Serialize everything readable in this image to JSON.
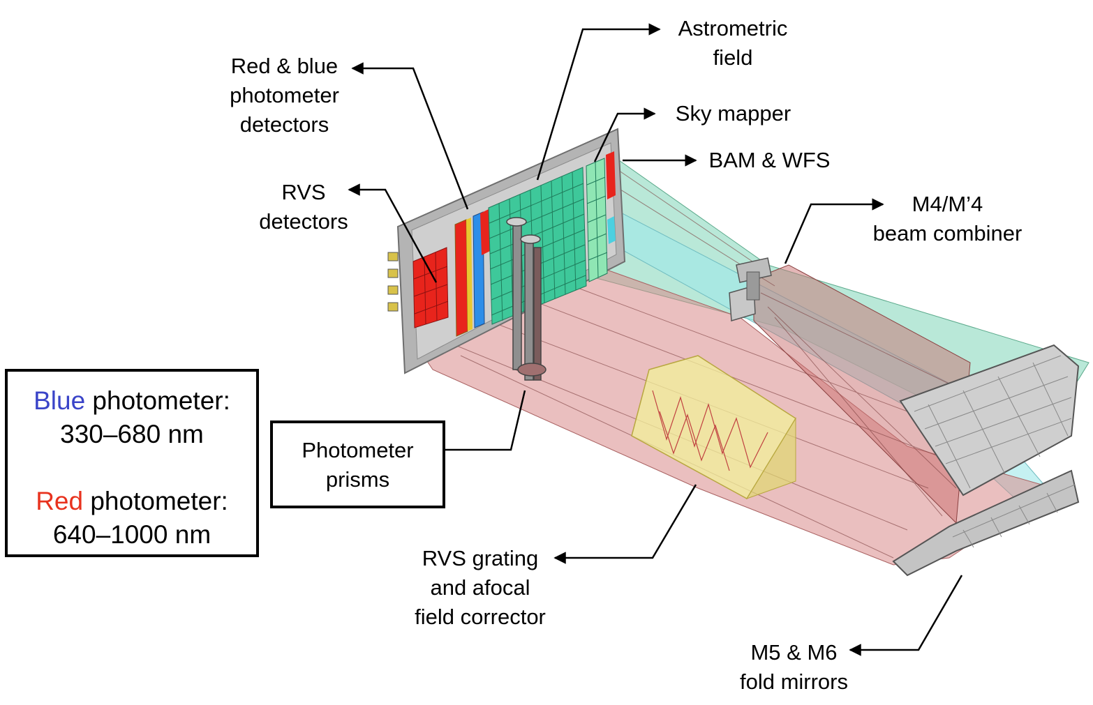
{
  "labels": {
    "astrometric_field": [
      "Astrometric",
      "field"
    ],
    "red_blue_detectors": [
      "Red & blue",
      "photometer",
      "detectors"
    ],
    "sky_mapper": "Sky mapper",
    "bam_wfs": "BAM & WFS",
    "rvs_detectors": [
      "RVS",
      "detectors"
    ],
    "beam_combiner": [
      "M4/M’4",
      "beam combiner"
    ],
    "photometer_prisms": [
      "Photometer",
      "prisms"
    ],
    "rvs_grating": [
      "RVS grating",
      "and afocal",
      "field corrector"
    ],
    "fold_mirrors": [
      "M5 & M6",
      "fold mirrors"
    ]
  },
  "legend": {
    "blue_word": "Blue",
    "blue_rest": " photometer:",
    "blue_range": "330–680 nm",
    "red_word": "Red",
    "red_rest": " photometer:",
    "red_range": "640–1000 nm"
  },
  "colors": {
    "blue": "#3a44c8",
    "red": "#e8321e",
    "green_beam": "#7fd6b8",
    "red_beam": "#d98a8a",
    "cyan_beam": "#9fe8ea",
    "yellow_grating": "#f2f09a",
    "detector_red": "#e8241c",
    "detector_green": "#3ec89a",
    "panel_grey": "#b4b4b4"
  }
}
